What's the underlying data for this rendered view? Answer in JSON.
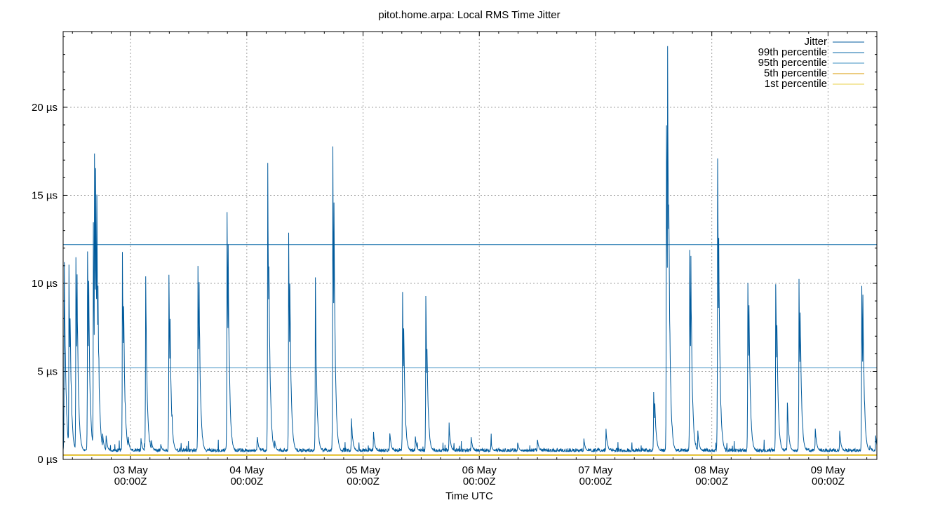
{
  "chart_data": {
    "type": "line",
    "title": "pitot.home.arpa: Local RMS Time Jitter",
    "xlabel": "Time UTC",
    "ylabel": "",
    "x_unit": "days",
    "x_range_days": [
      2.42,
      9.42
    ],
    "ylim": [
      0,
      24.3
    ],
    "y_ticks": [
      {
        "value": 0,
        "label": "0 µs"
      },
      {
        "value": 5,
        "label": "5 µs"
      },
      {
        "value": 10,
        "label": "10 µs"
      },
      {
        "value": 15,
        "label": "15 µs"
      },
      {
        "value": 20,
        "label": "20 µs"
      }
    ],
    "x_ticks": [
      {
        "value": 3,
        "line1": "03 May",
        "line2": "00:00Z"
      },
      {
        "value": 4,
        "line1": "04 May",
        "line2": "00:00Z"
      },
      {
        "value": 5,
        "line1": "05 May",
        "line2": "00:00Z"
      },
      {
        "value": 6,
        "line1": "06 May",
        "line2": "00:00Z"
      },
      {
        "value": 7,
        "line1": "07 May",
        "line2": "00:00Z"
      },
      {
        "value": 8,
        "line1": "08 May",
        "line2": "00:00Z"
      },
      {
        "value": 9,
        "line1": "09 May",
        "line2": "00:00Z"
      }
    ],
    "grid": true,
    "legend_position": "top-right",
    "series": [
      {
        "name": "Jitter",
        "color": "#005a9c",
        "baseline": 0.45,
        "peaks": [
          [
            2.43,
            11.9
          ],
          [
            2.44,
            6.0
          ],
          [
            2.47,
            11.9
          ],
          [
            2.48,
            8.7
          ],
          [
            2.53,
            12.6
          ],
          [
            2.54,
            10.7
          ],
          [
            2.57,
            1.2
          ],
          [
            2.63,
            12.8
          ],
          [
            2.64,
            10.5
          ],
          [
            2.68,
            13.5
          ],
          [
            2.69,
            18.4
          ],
          [
            2.7,
            16.8
          ],
          [
            2.71,
            15.3
          ],
          [
            2.72,
            9.8
          ],
          [
            2.76,
            1.5
          ],
          [
            2.79,
            1.4
          ],
          [
            2.93,
            12.7
          ],
          [
            2.94,
            9.6
          ],
          [
            2.98,
            1.3
          ],
          [
            3.09,
            1.2
          ],
          [
            3.13,
            11.2
          ],
          [
            3.18,
            1.1
          ],
          [
            3.26,
            0.9
          ],
          [
            3.33,
            11.2
          ],
          [
            3.34,
            8.1
          ],
          [
            3.58,
            11.7
          ],
          [
            3.59,
            10.2
          ],
          [
            3.83,
            14.9
          ],
          [
            3.84,
            12.5
          ],
          [
            4.09,
            1.3
          ],
          [
            4.18,
            17.1
          ],
          [
            4.19,
            12.2
          ],
          [
            4.24,
            1.1
          ],
          [
            4.36,
            13.3
          ],
          [
            4.37,
            10.8
          ],
          [
            4.59,
            10.6
          ],
          [
            4.74,
            18.3
          ],
          [
            4.75,
            15.6
          ],
          [
            4.9,
            2.4
          ],
          [
            5.09,
            1.6
          ],
          [
            5.23,
            1.6
          ],
          [
            5.34,
            10.3
          ],
          [
            5.35,
            7.8
          ],
          [
            5.45,
            1.3
          ],
          [
            5.54,
            9.9
          ],
          [
            5.55,
            6.9
          ],
          [
            5.74,
            2.1
          ],
          [
            5.93,
            1.3
          ],
          [
            6.1,
            1.0
          ],
          [
            6.33,
            1.0
          ],
          [
            6.5,
            1.2
          ],
          [
            6.9,
            1.2
          ],
          [
            7.09,
            1.8
          ],
          [
            7.5,
            4.2
          ],
          [
            7.51,
            3.5
          ],
          [
            7.61,
            20.7
          ],
          [
            7.62,
            24.3
          ],
          [
            7.63,
            16.0
          ],
          [
            7.81,
            12.2
          ],
          [
            7.82,
            11.7
          ],
          [
            7.88,
            1.7
          ],
          [
            8.05,
            17.7
          ],
          [
            8.06,
            13.4
          ],
          [
            8.31,
            11.1
          ],
          [
            8.32,
            9.7
          ],
          [
            8.55,
            10.8
          ],
          [
            8.56,
            8.2
          ],
          [
            8.65,
            3.5
          ],
          [
            8.75,
            10.5
          ],
          [
            8.76,
            9.4
          ],
          [
            8.89,
            1.9
          ],
          [
            9.1,
            1.7
          ],
          [
            9.29,
            10.7
          ],
          [
            9.3,
            9.8
          ],
          [
            9.36,
            0.8
          ],
          [
            9.41,
            1.4
          ]
        ]
      },
      {
        "name": "99th percentile",
        "color": "#0a6aa8",
        "value": 12.2
      },
      {
        "name": "95th percentile",
        "color": "#3c8fc2",
        "value": 5.2
      },
      {
        "name": "5th percentile",
        "color": "#d99a00",
        "value": 0.25
      },
      {
        "name": "1st percentile",
        "color": "#e8d24a",
        "value": 0.22
      }
    ]
  }
}
